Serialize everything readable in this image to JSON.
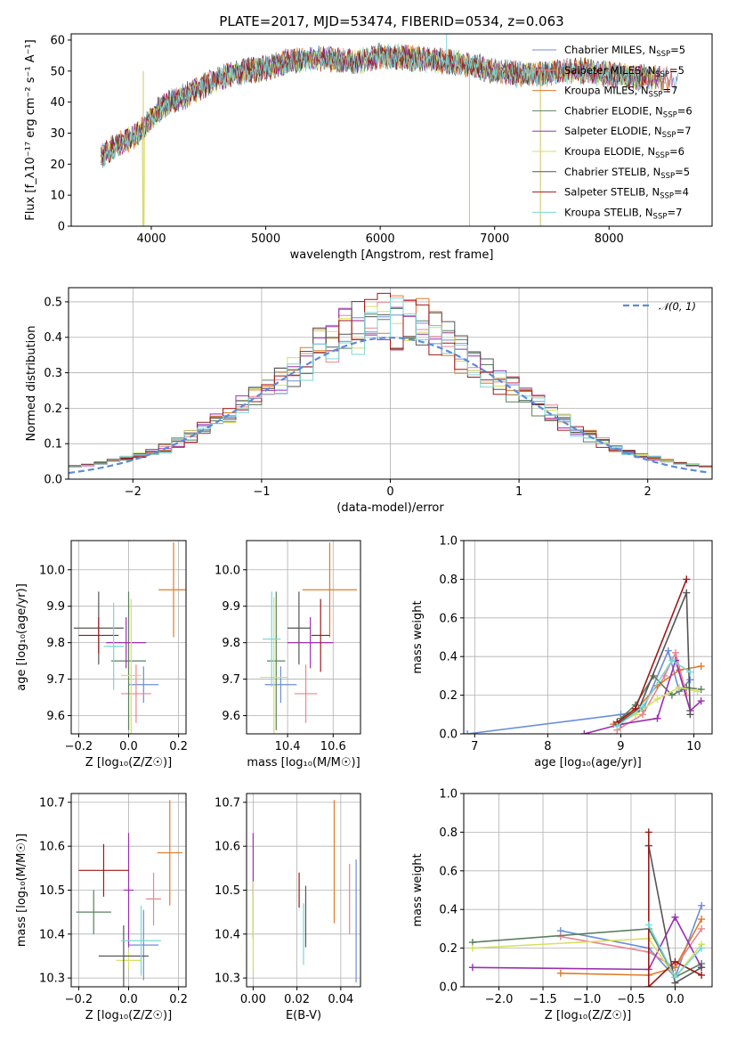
{
  "figure_title": "PLATE=2017, MJD=53474, FIBERID=0534, z=0.063",
  "colors": {
    "chabrier_miles": "#6b8fd6",
    "salpeter_miles": "#e8858f",
    "kroupa_miles": "#e07b27",
    "chabrier_elodie": "#5a8060",
    "salpeter_elodie": "#9a2fb0",
    "kroupa_elodie": "#d6e060",
    "chabrier_stelib": "#555555",
    "salpeter_stelib": "#a01818",
    "kroupa_stelib": "#7ad6d6",
    "gaussian": "#5b8bd6"
  },
  "legend_spectrum": [
    {
      "model": "Chabrier MILES",
      "nssp": "5",
      "color_key": "chabrier_miles"
    },
    {
      "model": "Salpeter MILES",
      "nssp": "5",
      "color_key": "salpeter_miles"
    },
    {
      "model": "Kroupa MILES",
      "nssp": "7",
      "color_key": "kroupa_miles"
    },
    {
      "model": "Chabrier ELODIE",
      "nssp": "6",
      "color_key": "chabrier_elodie"
    },
    {
      "model": "Salpeter ELODIE",
      "nssp": "7",
      "color_key": "salpeter_elodie"
    },
    {
      "model": "Kroupa ELODIE",
      "nssp": "6",
      "color_key": "kroupa_elodie"
    },
    {
      "model": "Chabrier STELIB",
      "nssp": "5",
      "color_key": "chabrier_stelib"
    },
    {
      "model": "Salpeter STELIB",
      "nssp": "4",
      "color_key": "salpeter_stelib"
    },
    {
      "model": "Kroupa STELIB",
      "nssp": "7",
      "color_key": "kroupa_stelib"
    }
  ],
  "chart_data": [
    {
      "id": "spectrum",
      "type": "line",
      "xlabel": "wavelength [Angstrom, rest frame]",
      "ylabel": "Flux [f_λ10⁻¹⁷ erg cm⁻² s⁻¹ A⁻¹]",
      "xlim": [
        3300,
        8900
      ],
      "ylim": [
        0,
        62
      ],
      "xticks": [
        "4000",
        "5000",
        "6000",
        "7000",
        "8000"
      ],
      "yticks": [
        "0",
        "10",
        "20",
        "30",
        "40",
        "50",
        "60"
      ],
      "continuum": {
        "x": [
          3560,
          3650,
          3750,
          3850,
          3920,
          3960,
          4050,
          4150,
          4300,
          4450,
          4600,
          4800,
          5000,
          5200,
          5400,
          5600,
          5800,
          6000,
          6300,
          6600,
          6800,
          7000,
          7200,
          7400,
          7600,
          7800,
          8000,
          8200,
          8400,
          8600
        ],
        "y": [
          22,
          25,
          27,
          29,
          31,
          33,
          37,
          40,
          42,
          45,
          48,
          50,
          51,
          53,
          54,
          54,
          53,
          55,
          54,
          53,
          52,
          50,
          49,
          49,
          50,
          50,
          49,
          48,
          48,
          47
        ]
      },
      "spikes": [
        {
          "x": 3930,
          "y": 0
        },
        {
          "x": 6780,
          "y": 0
        },
        {
          "x": 7400,
          "y": 0
        },
        {
          "x": 6580,
          "y": 62
        }
      ]
    },
    {
      "id": "residuals",
      "type": "histogram",
      "xlabel": "(data-model)/error",
      "ylabel": "Normed distribution",
      "xlim": [
        -2.5,
        2.5
      ],
      "ylim": [
        0,
        0.54
      ],
      "xticks": [
        "−2",
        "−1",
        "0",
        "1",
        "2"
      ],
      "yticks": [
        "0.0",
        "0.1",
        "0.2",
        "0.3",
        "0.4",
        "0.5"
      ],
      "gaussian_label": "𝒩(0, 1)",
      "bin_width": 0.1
    },
    {
      "id": "age_vs_Z",
      "type": "errorbar",
      "xlabel": "Z [log₁₀(Z/Z☉)]",
      "ylabel": "age  [log₁₀(age/yr)]",
      "xlim": [
        -0.23,
        0.23
      ],
      "ylim": [
        9.55,
        10.08
      ],
      "xticks": [
        "−0.2",
        "0.0",
        "0.2"
      ],
      "yticks": [
        "9.6",
        "9.7",
        "9.8",
        "9.9",
        "10.0"
      ],
      "points": [
        {
          "c": "chabrier_miles",
          "x": 0.06,
          "xe": 0.06,
          "y": 9.685,
          "ye": 0.05
        },
        {
          "c": "salpeter_miles",
          "x": 0.03,
          "xe": 0.06,
          "y": 9.66,
          "ye": 0.08
        },
        {
          "c": "kroupa_miles",
          "x": 0.18,
          "xe": 0.06,
          "y": 9.945,
          "ye": 0.13
        },
        {
          "c": "chabrier_elodie",
          "x": 0.0,
          "xe": 0.07,
          "y": 9.75,
          "ye": 0.19
        },
        {
          "c": "salpeter_elodie",
          "x": -0.01,
          "xe": 0.08,
          "y": 9.8,
          "ye": 0.07
        },
        {
          "c": "kroupa_elodie",
          "x": 0.01,
          "xe": 0.04,
          "y": 9.71,
          "ye": 0.21
        },
        {
          "c": "chabrier_stelib",
          "x": -0.12,
          "xe": 0.1,
          "y": 9.84,
          "ye": 0.1
        },
        {
          "c": "salpeter_stelib",
          "x": -0.12,
          "xe": 0.08,
          "y": 9.82,
          "ye": 0.05
        },
        {
          "c": "kroupa_stelib",
          "x": -0.06,
          "xe": 0.04,
          "y": 9.79,
          "ye": 0.12
        }
      ]
    },
    {
      "id": "age_vs_mass",
      "type": "errorbar",
      "xlabel": "mass [log₁₀(M/M☉)]",
      "ylabel": "",
      "xlim": [
        10.22,
        10.72
      ],
      "ylim": [
        9.55,
        10.08
      ],
      "xticks": [
        "10.4",
        "10.6"
      ],
      "yticks": [
        "9.6",
        "9.7",
        "9.8",
        "9.9",
        "10.0"
      ],
      "points": [
        {
          "c": "chabrier_miles",
          "x": 10.37,
          "xe": 0.07,
          "y": 9.685,
          "ye": 0.05
        },
        {
          "c": "salpeter_miles",
          "x": 10.48,
          "xe": 0.05,
          "y": 9.66,
          "ye": 0.08
        },
        {
          "c": "kroupa_miles",
          "x": 10.585,
          "xe": 0.12,
          "y": 9.945,
          "ye": 0.13
        },
        {
          "c": "chabrier_elodie",
          "x": 10.35,
          "xe": 0.04,
          "y": 9.75,
          "ye": 0.19
        },
        {
          "c": "salpeter_elodie",
          "x": 10.5,
          "xe": 0.1,
          "y": 9.8,
          "ye": 0.07
        },
        {
          "c": "kroupa_elodie",
          "x": 10.34,
          "xe": 0.06,
          "y": 9.705,
          "ye": 0.22
        },
        {
          "c": "chabrier_stelib",
          "x": 10.45,
          "xe": 0.05,
          "y": 9.84,
          "ye": 0.1
        },
        {
          "c": "salpeter_stelib",
          "x": 10.545,
          "xe": 0.04,
          "y": 9.82,
          "ye": 0.1
        },
        {
          "c": "kroupa_stelib",
          "x": 10.33,
          "xe": 0.04,
          "y": 9.81,
          "ye": 0.13
        }
      ]
    },
    {
      "id": "weight_vs_age",
      "type": "line",
      "xlabel": "age  [log₁₀(age/yr)]",
      "ylabel": "mass weight",
      "xlim": [
        6.85,
        10.25
      ],
      "ylim": [
        0,
        1.0
      ],
      "xticks": [
        "7",
        "8",
        "9",
        "10"
      ],
      "yticks": [
        "0.0",
        "0.2",
        "0.4",
        "0.6",
        "0.8",
        "1.0"
      ],
      "series": [
        {
          "c": "chabrier_miles",
          "x": [
            6.9,
            9.0,
            9.3,
            9.65,
            9.8,
            9.95
          ],
          "y": [
            0.0,
            0.1,
            0.12,
            0.43,
            0.22,
            0.28
          ]
        },
        {
          "c": "salpeter_miles",
          "x": [
            8.95,
            9.3,
            9.6,
            9.75,
            9.9
          ],
          "y": [
            0.02,
            0.1,
            0.3,
            0.42,
            0.2
          ]
        },
        {
          "c": "kroupa_miles",
          "x": [
            8.9,
            9.2,
            9.5,
            9.8,
            10.1
          ],
          "y": [
            0.05,
            0.12,
            0.25,
            0.33,
            0.35
          ]
        },
        {
          "c": "chabrier_elodie",
          "x": [
            9.0,
            9.2,
            9.45,
            9.7,
            9.9,
            10.1
          ],
          "y": [
            0.08,
            0.15,
            0.3,
            0.2,
            0.24,
            0.23
          ]
        },
        {
          "c": "salpeter_elodie",
          "x": [
            8.5,
            9.0,
            9.5,
            9.75,
            9.95,
            10.1
          ],
          "y": [
            0.0,
            0.05,
            0.08,
            0.38,
            0.12,
            0.17
          ]
        },
        {
          "c": "kroupa_elodie",
          "x": [
            8.95,
            9.2,
            9.5,
            9.8,
            10.05
          ],
          "y": [
            0.05,
            0.1,
            0.18,
            0.24,
            0.22
          ]
        },
        {
          "c": "chabrier_stelib",
          "x": [
            8.95,
            9.25,
            9.9,
            9.95
          ],
          "y": [
            0.05,
            0.13,
            0.73,
            0.1
          ]
        },
        {
          "c": "salpeter_stelib",
          "x": [
            8.95,
            9.2,
            9.9
          ],
          "y": [
            0.06,
            0.13,
            0.8
          ]
        },
        {
          "c": "kroupa_stelib",
          "x": [
            8.95,
            9.3,
            9.7,
            9.95
          ],
          "y": [
            0.04,
            0.14,
            0.38,
            0.32
          ]
        }
      ]
    },
    {
      "id": "mass_vs_Z",
      "type": "errorbar",
      "xlabel": "Z [log₁₀(Z/Z☉)]",
      "ylabel": "mass [log₁₀(M/M☉)]",
      "xlim": [
        -0.23,
        0.23
      ],
      "ylim": [
        10.28,
        10.72
      ],
      "xticks": [
        "−0.2",
        "0.0",
        "0.2"
      ],
      "yticks": [
        "10.3",
        "10.4",
        "10.5",
        "10.6",
        "10.7"
      ],
      "points": [
        {
          "c": "chabrier_miles",
          "x": 0.06,
          "xe": 0.06,
          "y": 10.375,
          "ye": 0.08
        },
        {
          "c": "salpeter_miles",
          "x": 0.1,
          "xe": 0.03,
          "y": 10.48,
          "ye": 0.06
        },
        {
          "c": "kroupa_miles",
          "x": 0.165,
          "xe": 0.05,
          "y": 10.585,
          "ye": 0.12
        },
        {
          "c": "chabrier_elodie",
          "x": -0.14,
          "xe": 0.07,
          "y": 10.45,
          "ye": 0.05
        },
        {
          "c": "salpeter_elodie",
          "x": 0.0,
          "xe": 0.02,
          "y": 10.5,
          "ye": 0.13
        },
        {
          "c": "kroupa_elodie",
          "x": 0.0,
          "xe": 0.05,
          "y": 10.34,
          "ye": 0.02
        },
        {
          "c": "chabrier_stelib",
          "x": -0.02,
          "xe": 0.1,
          "y": 10.35,
          "ye": 0.07
        },
        {
          "c": "salpeter_stelib",
          "x": -0.1,
          "xe": 0.1,
          "y": 10.545,
          "ye": 0.06
        },
        {
          "c": "kroupa_stelib",
          "x": 0.05,
          "xe": 0.08,
          "y": 10.385,
          "ye": 0.08
        }
      ]
    },
    {
      "id": "mass_vs_ebv",
      "type": "errorbar",
      "xlabel": "E(B-V)",
      "ylabel": "",
      "xlim": [
        -0.003,
        0.049
      ],
      "ylim": [
        10.28,
        10.72
      ],
      "xticks": [
        "0.00",
        "0.02",
        "0.04"
      ],
      "yticks": [
        "10.3",
        "10.4",
        "10.5",
        "10.6",
        "10.7"
      ],
      "points": [
        {
          "c": "chabrier_miles",
          "x": 0.047,
          "xe": 0,
          "y": 10.43,
          "ye": 0.14
        },
        {
          "c": "salpeter_miles",
          "x": 0.044,
          "xe": 0,
          "y": 10.48,
          "ye": 0.08
        },
        {
          "c": "kroupa_miles",
          "x": 0.037,
          "xe": 0,
          "y": 10.565,
          "ye": 0.14
        },
        {
          "c": "chabrier_elodie",
          "x": 0.0,
          "xe": 0,
          "y": 10.45,
          "ye": 0.06
        },
        {
          "c": "salpeter_elodie",
          "x": 0.0,
          "xe": 0,
          "y": 10.56,
          "ye": 0.07
        },
        {
          "c": "kroupa_elodie",
          "x": 0.0,
          "xe": 0,
          "y": 10.42,
          "ye": 0.1
        },
        {
          "c": "chabrier_stelib",
          "x": 0.024,
          "xe": 0,
          "y": 10.44,
          "ye": 0.07
        },
        {
          "c": "salpeter_stelib",
          "x": 0.021,
          "xe": 0,
          "y": 10.5,
          "ye": 0.04
        },
        {
          "c": "kroupa_stelib",
          "x": 0.023,
          "xe": 0,
          "y": 10.4,
          "ye": 0.07
        }
      ]
    },
    {
      "id": "weight_vs_Z",
      "type": "line",
      "xlabel": "Z [log₁₀(Z/Z☉)]",
      "ylabel": "mass weight",
      "xlim": [
        -2.4,
        0.42
      ],
      "ylim": [
        0,
        1.0
      ],
      "xticks": [
        "−2.0",
        "−1.5",
        "−1.0",
        "−0.5",
        "0.0"
      ],
      "yticks": [
        "0.0",
        "0.2",
        "0.4",
        "0.6",
        "0.8",
        "1.0"
      ],
      "series": [
        {
          "c": "chabrier_miles",
          "x": [
            -1.3,
            -0.3,
            0.0,
            0.3
          ],
          "y": [
            0.29,
            0.2,
            0.05,
            0.42
          ]
        },
        {
          "c": "salpeter_miles",
          "x": [
            -1.3,
            -0.3,
            0.0,
            0.3
          ],
          "y": [
            0.26,
            0.18,
            0.1,
            0.3
          ]
        },
        {
          "c": "kroupa_miles",
          "x": [
            -1.3,
            -0.3,
            0.0,
            0.3
          ],
          "y": [
            0.07,
            0.06,
            0.1,
            0.35
          ]
        },
        {
          "c": "chabrier_elodie",
          "x": [
            -2.3,
            -0.3,
            0.0,
            0.3
          ],
          "y": [
            0.23,
            0.3,
            0.05,
            0.12
          ]
        },
        {
          "c": "salpeter_elodie",
          "x": [
            -2.3,
            -0.3,
            0.0,
            0.3
          ],
          "y": [
            0.1,
            0.09,
            0.36,
            0.1
          ]
        },
        {
          "c": "kroupa_elodie",
          "x": [
            -2.3,
            -0.3,
            0.0,
            0.3
          ],
          "y": [
            0.2,
            0.25,
            0.05,
            0.22
          ]
        },
        {
          "c": "chabrier_stelib",
          "x": [
            -0.3,
            -0.3,
            0.0,
            0.3
          ],
          "y": [
            0.73,
            0.73,
            0.02,
            0.1
          ]
        },
        {
          "c": "salpeter_stelib",
          "x": [
            -0.3,
            -0.3,
            0.0,
            0.3
          ],
          "y": [
            0.8,
            0.0,
            0.13,
            0.06
          ]
        },
        {
          "c": "kroupa_stelib",
          "x": [
            -0.3,
            0.0,
            0.3
          ],
          "y": [
            0.32,
            0.05,
            0.2
          ]
        }
      ]
    }
  ]
}
